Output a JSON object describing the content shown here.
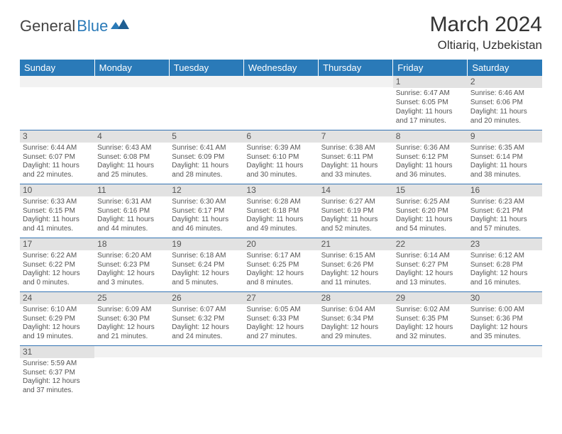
{
  "logo": {
    "text1": "General",
    "text2": "Blue"
  },
  "title": "March 2024",
  "location": "Oltiariq, Uzbekistan",
  "colors": {
    "headerBg": "#2a7ab8",
    "stripBg": "#e2e2e2",
    "ruleColor": "#3373b3"
  },
  "dayHeaders": [
    "Sunday",
    "Monday",
    "Tuesday",
    "Wednesday",
    "Thursday",
    "Friday",
    "Saturday"
  ],
  "weeks": [
    [
      null,
      null,
      null,
      null,
      null,
      {
        "n": "1",
        "sr": "6:47 AM",
        "ss": "6:05 PM",
        "dl": "11 hours and 17 minutes."
      },
      {
        "n": "2",
        "sr": "6:46 AM",
        "ss": "6:06 PM",
        "dl": "11 hours and 20 minutes."
      }
    ],
    [
      {
        "n": "3",
        "sr": "6:44 AM",
        "ss": "6:07 PM",
        "dl": "11 hours and 22 minutes."
      },
      {
        "n": "4",
        "sr": "6:43 AM",
        "ss": "6:08 PM",
        "dl": "11 hours and 25 minutes."
      },
      {
        "n": "5",
        "sr": "6:41 AM",
        "ss": "6:09 PM",
        "dl": "11 hours and 28 minutes."
      },
      {
        "n": "6",
        "sr": "6:39 AM",
        "ss": "6:10 PM",
        "dl": "11 hours and 30 minutes."
      },
      {
        "n": "7",
        "sr": "6:38 AM",
        "ss": "6:11 PM",
        "dl": "11 hours and 33 minutes."
      },
      {
        "n": "8",
        "sr": "6:36 AM",
        "ss": "6:12 PM",
        "dl": "11 hours and 36 minutes."
      },
      {
        "n": "9",
        "sr": "6:35 AM",
        "ss": "6:14 PM",
        "dl": "11 hours and 38 minutes."
      }
    ],
    [
      {
        "n": "10",
        "sr": "6:33 AM",
        "ss": "6:15 PM",
        "dl": "11 hours and 41 minutes."
      },
      {
        "n": "11",
        "sr": "6:31 AM",
        "ss": "6:16 PM",
        "dl": "11 hours and 44 minutes."
      },
      {
        "n": "12",
        "sr": "6:30 AM",
        "ss": "6:17 PM",
        "dl": "11 hours and 46 minutes."
      },
      {
        "n": "13",
        "sr": "6:28 AM",
        "ss": "6:18 PM",
        "dl": "11 hours and 49 minutes."
      },
      {
        "n": "14",
        "sr": "6:27 AM",
        "ss": "6:19 PM",
        "dl": "11 hours and 52 minutes."
      },
      {
        "n": "15",
        "sr": "6:25 AM",
        "ss": "6:20 PM",
        "dl": "11 hours and 54 minutes."
      },
      {
        "n": "16",
        "sr": "6:23 AM",
        "ss": "6:21 PM",
        "dl": "11 hours and 57 minutes."
      }
    ],
    [
      {
        "n": "17",
        "sr": "6:22 AM",
        "ss": "6:22 PM",
        "dl": "12 hours and 0 minutes."
      },
      {
        "n": "18",
        "sr": "6:20 AM",
        "ss": "6:23 PM",
        "dl": "12 hours and 3 minutes."
      },
      {
        "n": "19",
        "sr": "6:18 AM",
        "ss": "6:24 PM",
        "dl": "12 hours and 5 minutes."
      },
      {
        "n": "20",
        "sr": "6:17 AM",
        "ss": "6:25 PM",
        "dl": "12 hours and 8 minutes."
      },
      {
        "n": "21",
        "sr": "6:15 AM",
        "ss": "6:26 PM",
        "dl": "12 hours and 11 minutes."
      },
      {
        "n": "22",
        "sr": "6:14 AM",
        "ss": "6:27 PM",
        "dl": "12 hours and 13 minutes."
      },
      {
        "n": "23",
        "sr": "6:12 AM",
        "ss": "6:28 PM",
        "dl": "12 hours and 16 minutes."
      }
    ],
    [
      {
        "n": "24",
        "sr": "6:10 AM",
        "ss": "6:29 PM",
        "dl": "12 hours and 19 minutes."
      },
      {
        "n": "25",
        "sr": "6:09 AM",
        "ss": "6:30 PM",
        "dl": "12 hours and 21 minutes."
      },
      {
        "n": "26",
        "sr": "6:07 AM",
        "ss": "6:32 PM",
        "dl": "12 hours and 24 minutes."
      },
      {
        "n": "27",
        "sr": "6:05 AM",
        "ss": "6:33 PM",
        "dl": "12 hours and 27 minutes."
      },
      {
        "n": "28",
        "sr": "6:04 AM",
        "ss": "6:34 PM",
        "dl": "12 hours and 29 minutes."
      },
      {
        "n": "29",
        "sr": "6:02 AM",
        "ss": "6:35 PM",
        "dl": "12 hours and 32 minutes."
      },
      {
        "n": "30",
        "sr": "6:00 AM",
        "ss": "6:36 PM",
        "dl": "12 hours and 35 minutes."
      }
    ],
    [
      {
        "n": "31",
        "sr": "5:59 AM",
        "ss": "6:37 PM",
        "dl": "12 hours and 37 minutes."
      },
      null,
      null,
      null,
      null,
      null,
      null
    ]
  ]
}
